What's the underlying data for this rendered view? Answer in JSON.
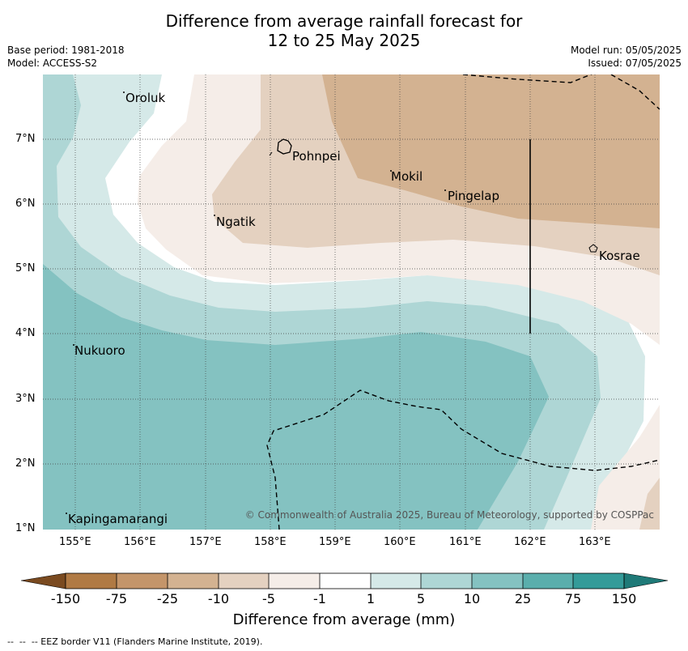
{
  "title": {
    "line1": "Difference from average rainfall forecast for",
    "line2": "12 to 25 May 2025"
  },
  "meta": {
    "base_period": "Base period: 1981-2018",
    "model": "Model: ACCESS-S2",
    "model_run": "Model run: 05/05/2025",
    "issued": "Issued: 07/05/2025"
  },
  "map": {
    "lon_labels": [
      "155°E",
      "156°E",
      "157°E",
      "158°E",
      "159°E",
      "160°E",
      "161°E",
      "162°E",
      "163°E"
    ],
    "lat_labels": [
      "7°N",
      "6°N",
      "5°N",
      "4°N",
      "3°N",
      "2°N",
      "1°N"
    ],
    "places": [
      "Oroluk",
      "Pohnpei",
      "Mokil",
      "Pingelap",
      "Ngatik",
      "Kosrae",
      "Nukuoro",
      "Kapingamarangi"
    ],
    "copyright": "© Commonwealth of Australia 2025, Bureau of Meteorology, supported by COSPPac"
  },
  "colorbar": {
    "labels": [
      "-150",
      "-75",
      "-25",
      "-10",
      "-5",
      "-1",
      "1",
      "5",
      "10",
      "25",
      "75",
      "150"
    ],
    "colors": [
      "#7a4a20",
      "#b07a44",
      "#c4956a",
      "#d3b291",
      "#e4d1c0",
      "#f5ede8",
      "#ffffff",
      "#d5e9e8",
      "#aed6d5",
      "#84c2c1",
      "#5aaeac",
      "#349b99",
      "#1f7a78"
    ],
    "title": "Difference from average (mm)"
  },
  "legend": {
    "eez": "--  --  -- EEZ border V11 (Flanders Marine Institute, 2019)."
  }
}
